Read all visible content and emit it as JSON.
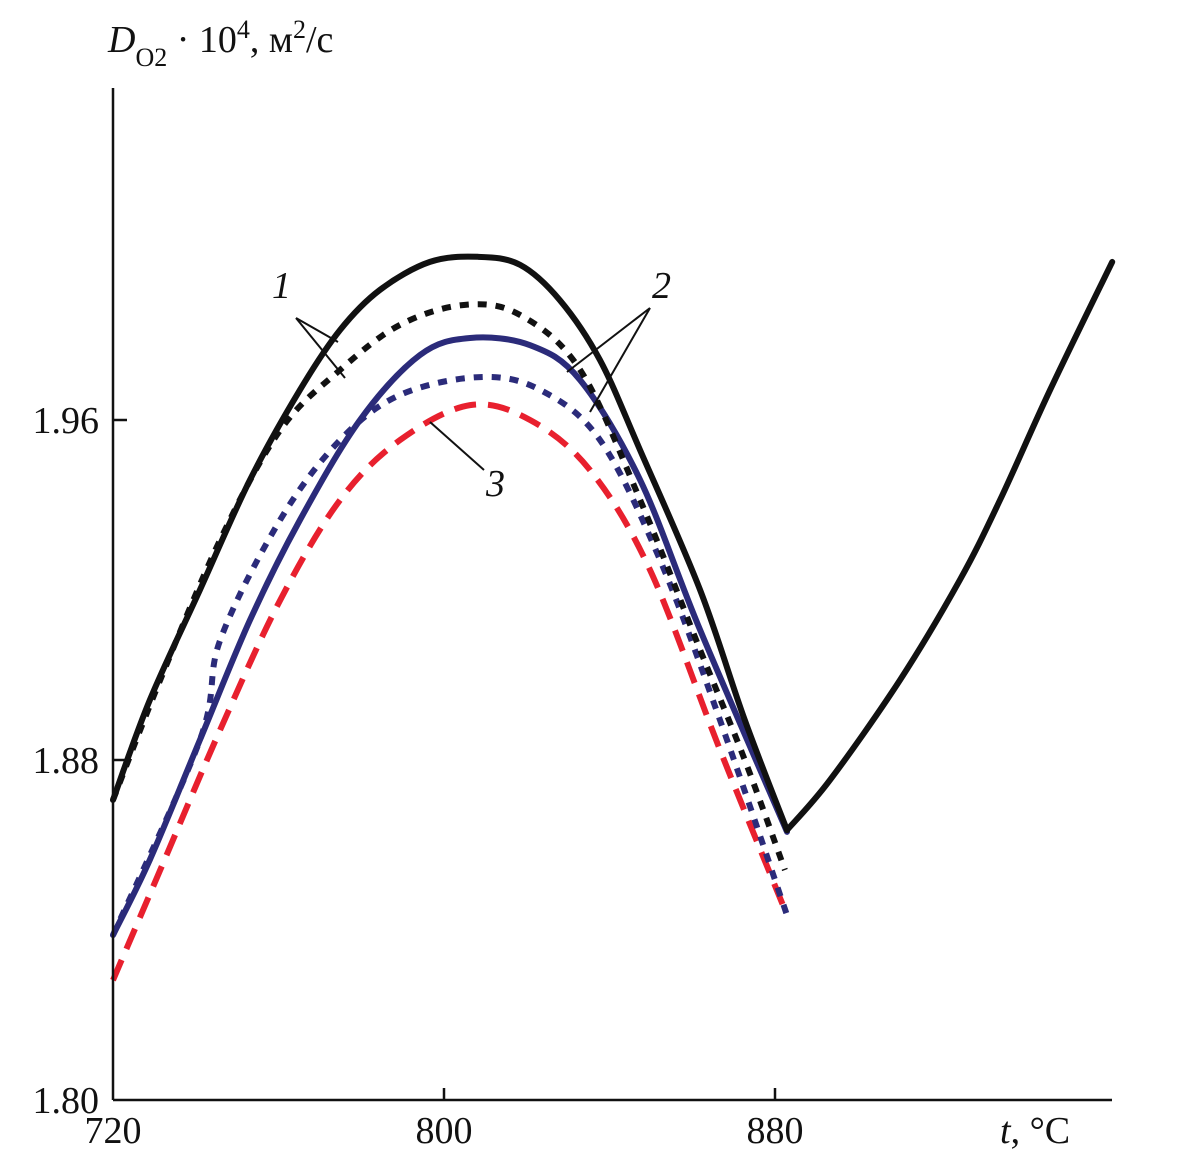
{
  "chart_data": {
    "type": "line",
    "title": "",
    "ylabel": {
      "main": "D",
      "sub": "O2",
      "rest": " · 10",
      "sup": "4",
      "unit": ", м",
      "unit_sup": "2",
      "unit_end": "/с"
    },
    "xlabel": {
      "var": "t",
      "unit": ", °C"
    },
    "xlim": [
      720,
      961
    ],
    "ylim": [
      1.8,
      2.038
    ],
    "xticks": [
      {
        "v": 720,
        "label": "720"
      },
      {
        "v": 800,
        "label": "800"
      },
      {
        "v": 880,
        "label": "880"
      }
    ],
    "yticks": [
      {
        "v": 1.8,
        "label": "1.80"
      },
      {
        "v": 1.88,
        "label": "1.88"
      },
      {
        "v": 1.96,
        "label": "1.96"
      }
    ],
    "grid": false,
    "series": [
      {
        "name": "1 (solid)",
        "color": "#111111",
        "dash": "solid",
        "segments": [
          [
            [
              720,
              1.8706
            ],
            [
              728.9,
              1.8941
            ],
            [
              741.0,
              1.92
            ],
            [
              753.1,
              1.9459
            ],
            [
              765.2,
              1.9671
            ],
            [
              774.9,
              1.9812
            ],
            [
              784.5,
              1.9906
            ],
            [
              796.6,
              1.9972
            ],
            [
              808.2,
              1.9984
            ],
            [
              818.4,
              1.9965
            ],
            [
              828.0,
              1.9882
            ],
            [
              837.7,
              1.9741
            ],
            [
              847.4,
              1.9529
            ],
            [
              861.9,
              1.92
            ],
            [
              872.7,
              1.8894
            ],
            [
              882.9,
              1.8635
            ]
          ],
          [
            [
              882.9,
              1.8635
            ],
            [
              893.3,
              1.8753
            ],
            [
              910.2,
              1.8988
            ],
            [
              924.7,
              1.9224
            ],
            [
              934.4,
              1.9412
            ],
            [
              946.5,
              1.9671
            ],
            [
              961.5,
              1.9972
            ]
          ]
        ]
      },
      {
        "name": "1 (dashed)",
        "color": "#111111",
        "dash": "short",
        "segments": [
          [
            [
              720,
              1.8706
            ],
            [
              731.4,
              1.8988
            ],
            [
              745.9,
              1.9318
            ],
            [
              760.4,
              1.9576
            ],
            [
              774.9,
              1.9718
            ],
            [
              789.4,
              1.9824
            ],
            [
              805.1,
              1.9871
            ],
            [
              818.4,
              1.9847
            ],
            [
              832.9,
              1.9718
            ],
            [
              847.4,
              1.9412
            ],
            [
              861.9,
              1.9059
            ],
            [
              872.7,
              1.88
            ],
            [
              882.4,
              1.8541
            ]
          ]
        ]
      },
      {
        "name": "2 (solid)",
        "color": "#2b2b7a",
        "dash": "solid",
        "segments": [
          [
            [
              720,
              1.8388
            ],
            [
              728.9,
              1.8565
            ],
            [
              741.0,
              1.8847
            ],
            [
              753.1,
              1.9129
            ],
            [
              765.2,
              1.9365
            ],
            [
              779.7,
              1.96
            ],
            [
              794.2,
              1.9753
            ],
            [
              806.3,
              1.9793
            ],
            [
              820.8,
              1.9776
            ],
            [
              832.9,
              1.9694
            ],
            [
              847.4,
              1.9459
            ],
            [
              861.9,
              1.9106
            ],
            [
              882.9,
              1.8631
            ]
          ]
        ]
      },
      {
        "name": "2 (dashed)",
        "color": "#2b2b7a",
        "dash": "short",
        "segments": [
          [
            [
              720,
              1.8388
            ],
            [
              741.0,
              1.8847
            ],
            [
              745.9,
              1.9082
            ],
            [
              760.4,
              1.9365
            ],
            [
              774.9,
              1.9553
            ],
            [
              789.4,
              1.9659
            ],
            [
              808.7,
              1.9701
            ],
            [
              823.2,
              1.9671
            ],
            [
              837.7,
              1.9553
            ],
            [
              852.2,
              1.9271
            ],
            [
              866.7,
              1.8894
            ],
            [
              882.9,
              1.8435
            ]
          ]
        ]
      },
      {
        "name": "3 (dashed)",
        "color": "#e8202e",
        "dash": "long",
        "segments": [
          [
            [
              720,
              1.8282
            ],
            [
              731.4,
              1.8541
            ],
            [
              745.9,
              1.8871
            ],
            [
              760.4,
              1.9176
            ],
            [
              774.9,
              1.9412
            ],
            [
              789.4,
              1.9553
            ],
            [
              806.3,
              1.9635
            ],
            [
              820.8,
              1.96
            ],
            [
              835.3,
              1.9482
            ],
            [
              849.8,
              1.9247
            ],
            [
              866.7,
              1.8824
            ],
            [
              882.9,
              1.8435
            ]
          ]
        ]
      }
    ],
    "annotations": [
      {
        "text": "1",
        "targets": [
          "1 (solid)",
          "1 (dashed)"
        ]
      },
      {
        "text": "2",
        "targets": [
          "2 (solid)",
          "2 (dashed)"
        ]
      },
      {
        "text": "3",
        "targets": [
          "3 (dashed)"
        ]
      }
    ]
  }
}
